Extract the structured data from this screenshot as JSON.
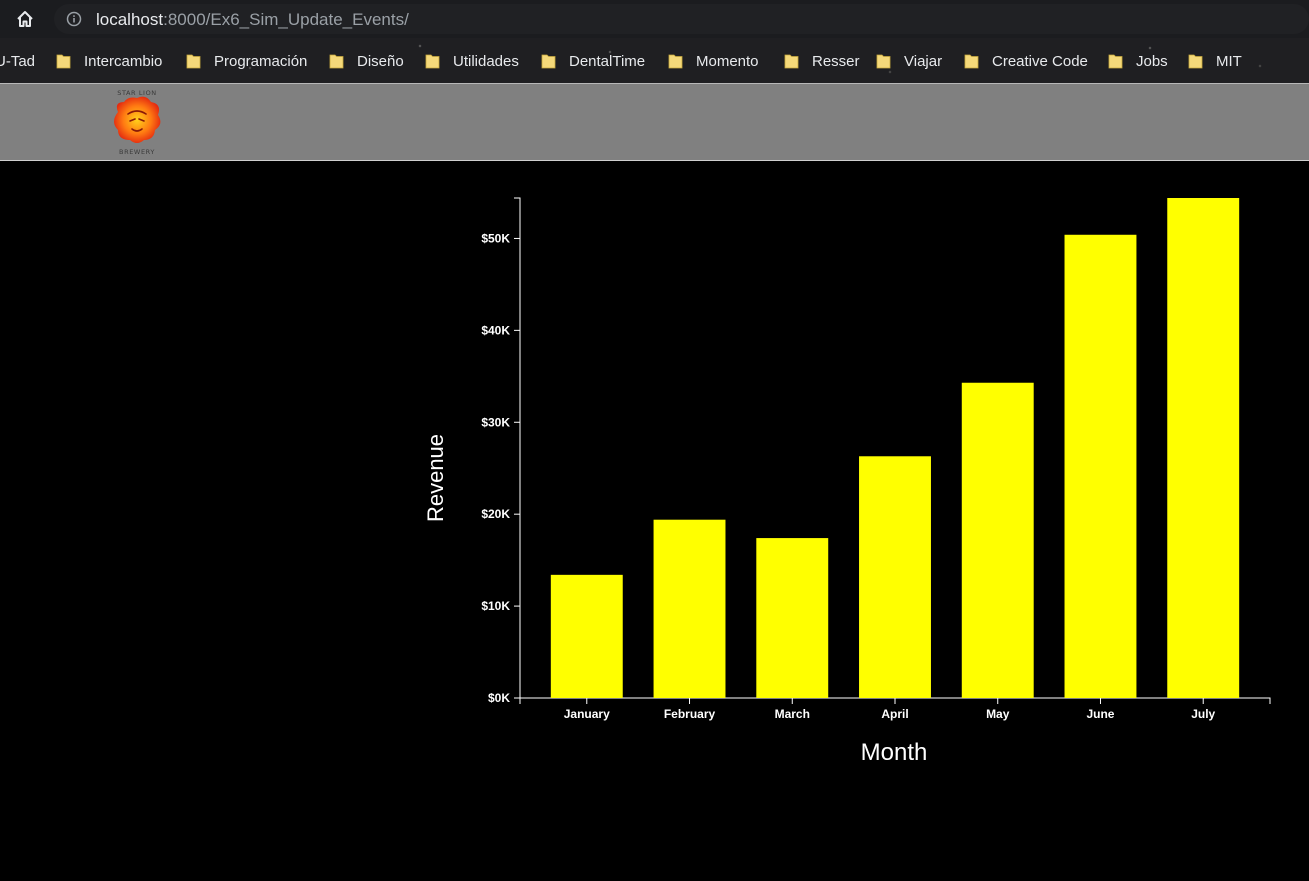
{
  "browser": {
    "url_host": "localhost",
    "url_path": ":8000/Ex6_Sim_Update_Events/",
    "bookmarks": [
      {
        "label": "U-Tad",
        "folder": false
      },
      {
        "label": "Intercambio",
        "folder": true
      },
      {
        "label": "Programación",
        "folder": true
      },
      {
        "label": "Diseño",
        "folder": true
      },
      {
        "label": "Utilidades",
        "folder": true
      },
      {
        "label": "DentalTime",
        "folder": true
      },
      {
        "label": "Momento",
        "folder": true
      },
      {
        "label": "Resser",
        "folder": true
      },
      {
        "label": "Viajar",
        "folder": true
      },
      {
        "label": "Creative Code",
        "folder": true
      },
      {
        "label": "Jobs",
        "folder": true
      },
      {
        "label": "MIT",
        "folder": true
      }
    ]
  },
  "header": {
    "logo_top_text": "STAR LION",
    "logo_bottom_text": "BREWERY",
    "background": "#808080"
  },
  "chart_data": {
    "type": "bar",
    "categories": [
      "January",
      "February",
      "March",
      "April",
      "May",
      "June",
      "July"
    ],
    "values": [
      13400,
      19400,
      17400,
      26300,
      34300,
      50400,
      54400
    ],
    "xlabel": "Month",
    "ylabel": "Revenue",
    "yticks": [
      "$0K",
      "$10K",
      "$20K",
      "$30K",
      "$40K",
      "$50K"
    ],
    "ylim": [
      0,
      54400
    ],
    "bar_color": "#ffff00",
    "text_color": "#ffffff",
    "background": "#000000"
  }
}
